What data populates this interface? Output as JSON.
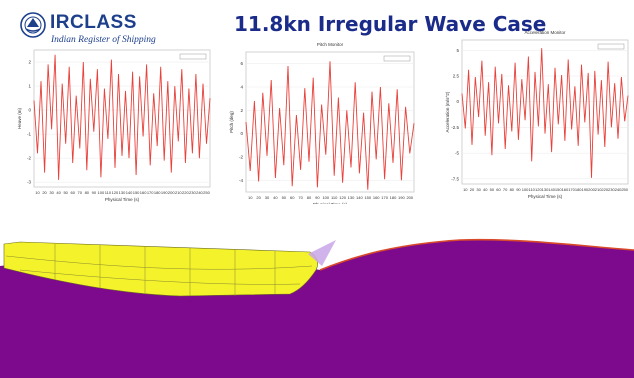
{
  "slide": {
    "title": "11.8kn Irregular Wave Case"
  },
  "logo": {
    "brand": "IRCLASS",
    "tagline": "Indian Register of Shipping"
  },
  "colors": {
    "title": "#1a2b8a",
    "logo": "#1d3f8c",
    "signal": "#e8403a",
    "water": "#7d0a8c",
    "hull": "#f4f22a",
    "waterline": "#d94a2a"
  },
  "chart_data": [
    {
      "type": "line",
      "title": "",
      "xlabel": "Physical Time (s)",
      "ylabel": "Heave (m)",
      "legend": "top-right",
      "yticks": [
        "2",
        "1",
        "0",
        "-1",
        "-2",
        "-3"
      ],
      "ylim": [
        -3.2,
        2.5
      ],
      "xticks": [
        "10",
        "20",
        "30",
        "40",
        "50",
        "60",
        "70",
        "80",
        "90",
        "100",
        "110",
        "120",
        "130",
        "140",
        "150",
        "160",
        "170",
        "180",
        "190",
        "200",
        "210",
        "220",
        "230",
        "240",
        "250"
      ],
      "xlim": [
        5,
        255
      ],
      "series": [
        {
          "x": [
            5,
            10,
            15,
            20,
            25,
            30,
            35,
            40,
            45,
            50,
            55,
            60,
            65,
            70,
            75,
            80,
            85,
            90,
            95,
            100,
            105,
            110,
            115,
            120,
            125,
            130,
            135,
            140,
            145,
            150,
            155,
            160,
            165,
            170,
            175,
            180,
            185,
            190,
            195,
            200,
            205,
            210,
            215,
            220,
            225,
            230,
            235,
            240,
            245,
            250,
            255
          ],
          "values": [
            0.4,
            -1.8,
            1.2,
            -2.6,
            1.9,
            -0.8,
            2.3,
            -2.9,
            1.1,
            -1.4,
            1.8,
            -2.2,
            0.6,
            -1.6,
            2.0,
            -2.5,
            1.3,
            -0.9,
            1.7,
            -2.8,
            0.9,
            -1.2,
            2.1,
            -2.4,
            1.5,
            -1.9,
            0.8,
            -2.0,
            1.6,
            -2.7,
            1.4,
            -1.1,
            1.9,
            -2.3,
            0.7,
            -1.5,
            1.8,
            -2.1,
            1.2,
            -2.6,
            1.0,
            -1.3,
            1.7,
            -2.2,
            0.9,
            -1.8,
            1.5,
            -2.0,
            1.1,
            -1.4,
            0.5
          ]
        }
      ]
    },
    {
      "type": "line",
      "title": "Pitch Monitor",
      "xlabel": "Physical Time (s)",
      "ylabel": "Pitch (deg)",
      "legend": "top-right",
      "yticks": [
        "6",
        "4",
        "2",
        "0",
        "-2",
        "-4"
      ],
      "ylim": [
        -5,
        7
      ],
      "xticks": [
        "10",
        "20",
        "30",
        "40",
        "50",
        "60",
        "70",
        "80",
        "90",
        "100",
        "110",
        "120",
        "130",
        "140",
        "150",
        "160",
        "170",
        "180",
        "190",
        "200"
      ],
      "xlim": [
        5,
        205
      ],
      "series": [
        {
          "x": [
            5,
            10,
            15,
            20,
            25,
            30,
            35,
            40,
            45,
            50,
            55,
            60,
            65,
            70,
            75,
            80,
            85,
            90,
            95,
            100,
            105,
            110,
            115,
            120,
            125,
            130,
            135,
            140,
            145,
            150,
            155,
            160,
            165,
            170,
            175,
            180,
            185,
            190,
            195,
            200,
            205
          ],
          "values": [
            1.0,
            -3.2,
            2.8,
            -4.1,
            3.5,
            -1.9,
            4.6,
            -3.8,
            2.2,
            -2.7,
            5.8,
            -4.5,
            1.6,
            -3.1,
            3.9,
            -2.4,
            4.8,
            -4.6,
            2.5,
            -1.8,
            6.2,
            -3.6,
            3.1,
            -4.2,
            2.0,
            -2.9,
            4.4,
            -3.4,
            1.8,
            -4.8,
            3.6,
            -2.2,
            4.0,
            -3.9,
            2.6,
            -2.5,
            3.8,
            -4.0,
            2.3,
            -1.7,
            0.9
          ]
        }
      ]
    },
    {
      "type": "line",
      "title": "Acceleration Monitor",
      "xlabel": "Physical Time (s)",
      "ylabel": "Acceleration (m/s^2)",
      "legend": "top-right",
      "yticks": [
        "5",
        "2.5",
        "0",
        "-2.5",
        "-5",
        "-7.5"
      ],
      "ylim": [
        -8,
        6
      ],
      "xticks": [
        "10",
        "20",
        "30",
        "40",
        "50",
        "60",
        "70",
        "80",
        "90",
        "100",
        "110",
        "120",
        "130",
        "140",
        "150",
        "160",
        "170",
        "180",
        "190",
        "200",
        "210",
        "220",
        "230",
        "240",
        "250"
      ],
      "xlim": [
        5,
        255
      ],
      "series": [
        {
          "x": [
            5,
            10,
            15,
            20,
            25,
            30,
            35,
            40,
            45,
            50,
            55,
            60,
            65,
            70,
            75,
            80,
            85,
            90,
            95,
            100,
            105,
            110,
            115,
            120,
            125,
            130,
            135,
            140,
            145,
            150,
            155,
            160,
            165,
            170,
            175,
            180,
            185,
            190,
            195,
            200,
            205,
            210,
            215,
            220,
            225,
            230,
            235,
            240,
            245,
            250,
            255
          ],
          "values": [
            0.8,
            -2.6,
            3.1,
            -4.2,
            2.4,
            -1.5,
            4.0,
            -3.3,
            1.9,
            -5.2,
            3.4,
            -2.1,
            2.7,
            -4.6,
            1.6,
            -2.9,
            3.8,
            -3.7,
            2.2,
            -1.8,
            4.4,
            -5.8,
            2.9,
            -2.4,
            5.2,
            -3.1,
            1.7,
            -4.9,
            3.3,
            -2.2,
            2.6,
            -3.8,
            4.1,
            -2.7,
            1.5,
            -4.3,
            3.6,
            -2.0,
            2.8,
            -7.4,
            3.0,
            -3.2,
            2.1,
            -4.4,
            3.9,
            -2.5,
            1.8,
            -3.6,
            2.4,
            -1.9,
            0.6
          ]
        }
      ]
    }
  ]
}
